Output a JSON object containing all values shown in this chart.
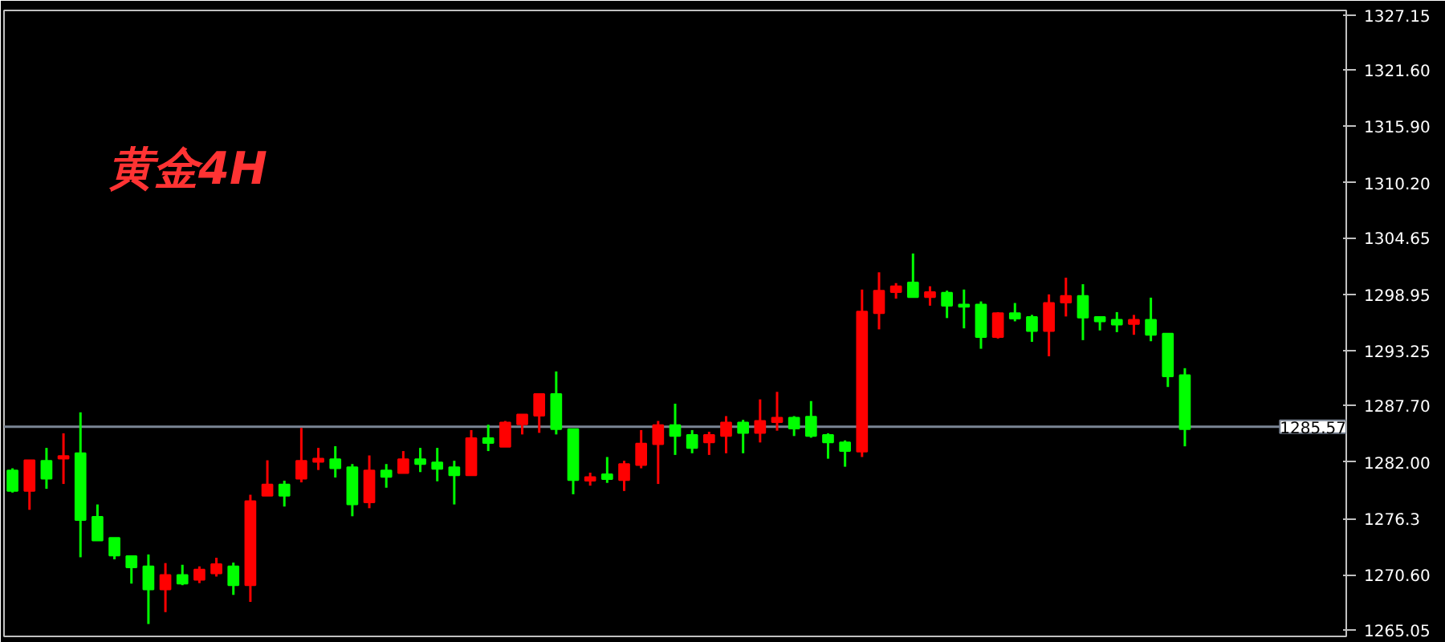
{
  "chart_data": {
    "type": "candlestick",
    "title": "黄金4H",
    "categories": [
      null,
      null,
      null,
      null,
      null,
      null,
      null,
      null,
      null,
      null,
      null,
      null,
      null,
      null,
      null,
      null,
      null,
      null,
      null,
      null,
      null,
      null,
      null,
      null,
      null,
      null,
      null,
      null,
      null,
      null,
      null,
      null,
      null,
      null,
      null,
      null,
      null,
      null,
      null,
      null,
      null,
      null,
      null,
      null,
      null,
      null,
      null,
      null,
      null,
      null,
      null,
      null,
      null,
      null,
      null,
      null,
      null,
      null,
      null,
      null,
      null,
      null,
      null,
      null,
      null,
      null,
      null,
      null,
      null,
      null,
      null,
      null,
      null,
      null,
      null,
      null,
      null,
      null,
      null
    ],
    "ohlc": [
      [
        1281.15,
        1281.37,
        1278.92,
        1279.08
      ],
      [
        1279.08,
        1282.18,
        1277.18,
        1282.18
      ],
      [
        1282.13,
        1283.43,
        1279.3,
        1280.33
      ],
      [
        1282.35,
        1284.9,
        1279.79,
        1282.62
      ],
      [
        1282.89,
        1287.02,
        1272.39,
        1276.15
      ],
      [
        1276.47,
        1277.72,
        1274.08,
        1274.08
      ],
      [
        1274.35,
        1274.35,
        1272.18,
        1272.56
      ],
      [
        1272.5,
        1272.5,
        1269.73,
        1271.36
      ],
      [
        1271.47,
        1272.67,
        1265.65,
        1269.13
      ],
      [
        1269.13,
        1271.8,
        1266.85,
        1270.6
      ],
      [
        1270.6,
        1271.63,
        1269.57,
        1269.73
      ],
      [
        1270.11,
        1271.47,
        1269.78,
        1271.14
      ],
      [
        1270.76,
        1272.34,
        1270.44,
        1271.69
      ],
      [
        1271.47,
        1271.85,
        1268.59,
        1269.57
      ],
      [
        1269.57,
        1278.7,
        1267.88,
        1278.05
      ],
      [
        1278.59,
        1282.18,
        1278.59,
        1279.74
      ],
      [
        1279.74,
        1280.12,
        1277.51,
        1278.59
      ],
      [
        1280.33,
        1285.45,
        1279.95,
        1282.13
      ],
      [
        1282.02,
        1283.43,
        1281.2,
        1282.35
      ],
      [
        1282.29,
        1283.6,
        1280.44,
        1281.37
      ],
      [
        1281.48,
        1281.8,
        1276.53,
        1277.72
      ],
      [
        1277.94,
        1282.67,
        1277.34,
        1281.15
      ],
      [
        1281.15,
        1281.8,
        1279.41,
        1280.5
      ],
      [
        1280.88,
        1283.11,
        1280.88,
        1282.29
      ],
      [
        1282.29,
        1283.43,
        1280.99,
        1281.8
      ],
      [
        1281.96,
        1283.43,
        1280.06,
        1281.31
      ],
      [
        1281.47,
        1282.13,
        1277.72,
        1280.66
      ],
      [
        1280.66,
        1285.23,
        1280.66,
        1284.41
      ],
      [
        1284.41,
        1285.77,
        1283.11,
        1283.92
      ],
      [
        1283.54,
        1286.15,
        1283.54,
        1285.99
      ],
      [
        1285.82,
        1286.8,
        1284.79,
        1286.8
      ],
      [
        1286.69,
        1288.87,
        1284.95,
        1288.87
      ],
      [
        1288.87,
        1291.15,
        1284.79,
        1285.33
      ],
      [
        1285.33,
        1285.33,
        1278.75,
        1280.17
      ],
      [
        1280.11,
        1280.93,
        1279.62,
        1280.49
      ],
      [
        1280.77,
        1282.51,
        1279.9,
        1280.28
      ],
      [
        1280.17,
        1282.13,
        1279.08,
        1281.8
      ],
      [
        1281.69,
        1285.23,
        1281.37,
        1283.87
      ],
      [
        1283.81,
        1286.15,
        1279.79,
        1285.72
      ],
      [
        1285.72,
        1287.89,
        1282.72,
        1284.63
      ],
      [
        1284.74,
        1285.23,
        1282.89,
        1283.43
      ],
      [
        1283.98,
        1285.06,
        1282.72,
        1284.74
      ],
      [
        1284.63,
        1286.64,
        1282.89,
        1285.99
      ],
      [
        1285.99,
        1286.26,
        1282.89,
        1284.95
      ],
      [
        1284.95,
        1288.33,
        1283.98,
        1286.15
      ],
      [
        1286.04,
        1289.09,
        1285.17,
        1286.48
      ],
      [
        1286.48,
        1286.64,
        1284.63,
        1285.39
      ],
      [
        1286.59,
        1288.16,
        1284.46,
        1284.63
      ],
      [
        1284.74,
        1284.9,
        1282.34,
        1283.98
      ],
      [
        1283.98,
        1284.19,
        1281.53,
        1283.11
      ],
      [
        1283.05,
        1299.42,
        1282.51,
        1297.19
      ],
      [
        1297.03,
        1301.16,
        1295.4,
        1299.31
      ],
      [
        1299.15,
        1300.07,
        1298.5,
        1299.75
      ],
      [
        1300.13,
        1303.06,
        1298.66,
        1298.66
      ],
      [
        1298.66,
        1299.75,
        1297.79,
        1299.15
      ],
      [
        1299.09,
        1299.31,
        1296.54,
        1297.79
      ],
      [
        1297.9,
        1299.42,
        1295.5,
        1297.68
      ],
      [
        1297.9,
        1298.22,
        1293.44,
        1294.63
      ],
      [
        1294.63,
        1297.14,
        1294.47,
        1297.03
      ],
      [
        1297.03,
        1298.06,
        1296.21,
        1296.48
      ],
      [
        1296.65,
        1296.86,
        1294.14,
        1295.23
      ],
      [
        1295.23,
        1298.93,
        1292.68,
        1298.06
      ],
      [
        1298.11,
        1300.62,
        1296.7,
        1298.77
      ],
      [
        1298.77,
        1299.96,
        1294.31,
        1296.59
      ],
      [
        1296.65,
        1296.65,
        1295.29,
        1296.21
      ],
      [
        1296.37,
        1297.14,
        1295.12,
        1295.88
      ],
      [
        1295.94,
        1296.86,
        1294.85,
        1296.37
      ],
      [
        1296.37,
        1298.6,
        1294.2,
        1294.85
      ],
      [
        1294.96,
        1294.96,
        1289.58,
        1290.66
      ],
      [
        1290.77,
        1291.48,
        1283.59,
        1285.33
      ],
      null,
      null,
      null,
      null,
      null,
      null,
      null,
      null,
      null
    ],
    "colors": [
      "#00ff00",
      "#ff0000",
      "#00ff00",
      "#ff0000",
      "#00ff00",
      "#00ff00",
      "#00ff00",
      "#00ff00",
      "#00ff00",
      "#ff0000",
      "#00ff00",
      "#ff0000",
      "#ff0000",
      "#00ff00",
      "#ff0000",
      "#ff0000",
      "#00ff00",
      "#ff0000",
      "#ff0000",
      "#00ff00",
      "#00ff00",
      "#ff0000",
      "#00ff00",
      "#ff0000",
      "#00ff00",
      "#00ff00",
      "#00ff00",
      "#ff0000",
      "#00ff00",
      "#ff0000",
      "#ff0000",
      "#ff0000",
      "#00ff00",
      "#00ff00",
      "#ff0000",
      "#00ff00",
      "#ff0000",
      "#ff0000",
      "#ff0000",
      "#00ff00",
      "#00ff00",
      "#ff0000",
      "#ff0000",
      "#00ff00",
      "#ff0000",
      "#ff0000",
      "#00ff00",
      "#00ff00",
      "#00ff00",
      "#00ff00",
      "#ff0000",
      "#ff0000",
      "#ff0000",
      "#00ff00",
      "#ff0000",
      "#00ff00",
      "#00ff00",
      "#00ff00",
      "#ff0000",
      "#00ff00",
      "#00ff00",
      "#ff0000",
      "#ff0000",
      "#00ff00",
      "#00ff00",
      "#00ff00",
      "#ff0000",
      "#00ff00",
      "#00ff00",
      "#00ff00",
      null,
      null,
      null,
      null,
      null,
      null,
      null,
      null,
      null
    ],
    "ylim": [
      1264.4,
      1327.6
    ],
    "yticks": [
      1265.05,
      {
        "value": 1270.6,
        "label": "1270.60"
      },
      1276.3,
      {
        "value": 1282.0,
        "label": "1282.00"
      },
      {
        "value": 1287.7,
        "label": "1287.70"
      },
      1293.25,
      1298.95,
      1304.65,
      {
        "value": 1310.2,
        "label": "1310.20"
      },
      {
        "value": 1315.9,
        "label": "1315.90"
      },
      {
        "value": 1321.6,
        "label": "1321.60"
      },
      1327.15
    ],
    "ref_lines": [
      {
        "axis": "y",
        "value": 1285.57,
        "label": "1285.57",
        "color": "#7a8494"
      }
    ],
    "tick_labels": "y",
    "grid": false
  }
}
